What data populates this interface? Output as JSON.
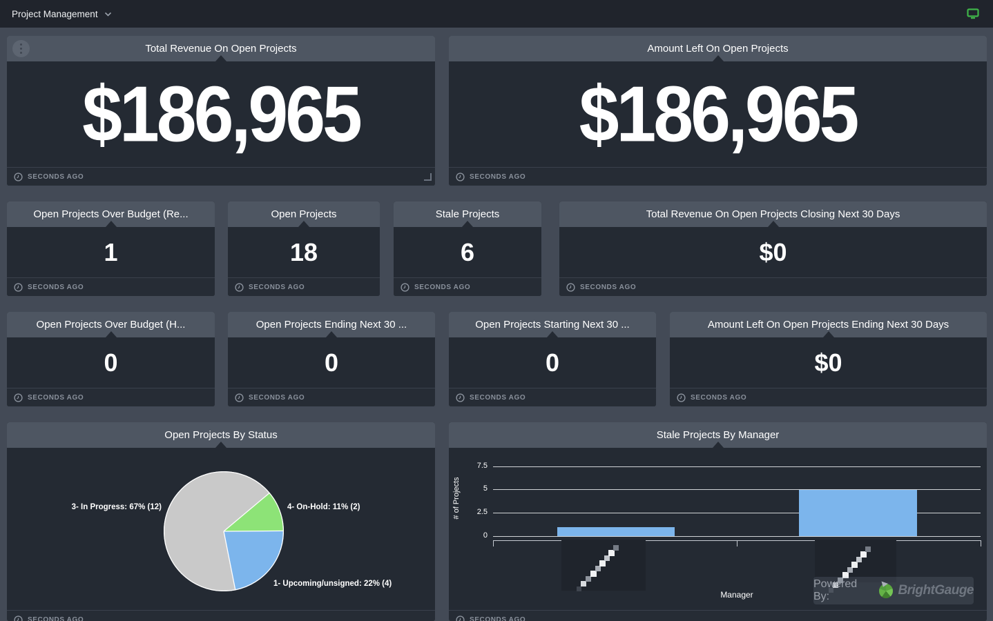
{
  "topbar": {
    "title": "Project Management"
  },
  "updated_label": "SECONDS AGO",
  "gauges": [
    {
      "title": "Total Revenue On Open Projects",
      "value": "$186,965"
    },
    {
      "title": "Amount Left On Open Projects",
      "value": "$186,965"
    },
    {
      "title": "Open Projects Over Budget (Re...",
      "value": "1"
    },
    {
      "title": "Open Projects",
      "value": "18"
    },
    {
      "title": "Stale Projects",
      "value": "6"
    },
    {
      "title": "Total Revenue On Open Projects Closing Next 30 Days",
      "value": "$0"
    },
    {
      "title": "Open Projects Over Budget (H...",
      "value": "0"
    },
    {
      "title": "Open Projects Ending Next 30 ...",
      "value": "0"
    },
    {
      "title": "Open Projects Starting Next 30 ...",
      "value": "0"
    },
    {
      "title": "Amount Left On Open Projects Ending Next 30 Days",
      "value": "$0"
    }
  ],
  "watermark": {
    "prefix": "Powered By:",
    "brand": "BrightGauge",
    "logo_color": "#57a33f"
  },
  "colors": {
    "page_bg": "#434a56",
    "card_bg": "#242a33",
    "card_header_bg": "#4e5662",
    "bar_color": "#7cb5ec",
    "present_icon_green": "#3fb549"
  },
  "chart_data": [
    {
      "type": "pie",
      "title": "Open Projects By Status",
      "start_angle": 50,
      "legend_position": "data-labels",
      "slices": [
        {
          "label": "4- On-Hold",
          "percent": 11,
          "count": 2,
          "color": "#8de377",
          "display": "4- On-Hold: 11% (2)"
        },
        {
          "label": "1- Upcoming/unsigned",
          "percent": 22,
          "count": 4,
          "color": "#7cb5ec",
          "display": "1- Upcoming/unsigned: 22% (4)"
        },
        {
          "label": "3- In Progress",
          "percent": 67,
          "count": 12,
          "color": "#c9c9c9",
          "display": "3- In Progress: 67% (12)"
        }
      ]
    },
    {
      "type": "bar",
      "title": "Stale Projects By Manager",
      "categories": [
        "[pixelated name]",
        "[pixelated name]"
      ],
      "values": [
        1,
        5
      ],
      "xlabel": "Manager",
      "ylabel": "# of Projects",
      "yticks": [
        "7.5",
        "5",
        "2.5",
        "0"
      ],
      "ylim": [
        0,
        7.5
      ],
      "grid": true,
      "bar_color": "#7cb5ec"
    }
  ]
}
